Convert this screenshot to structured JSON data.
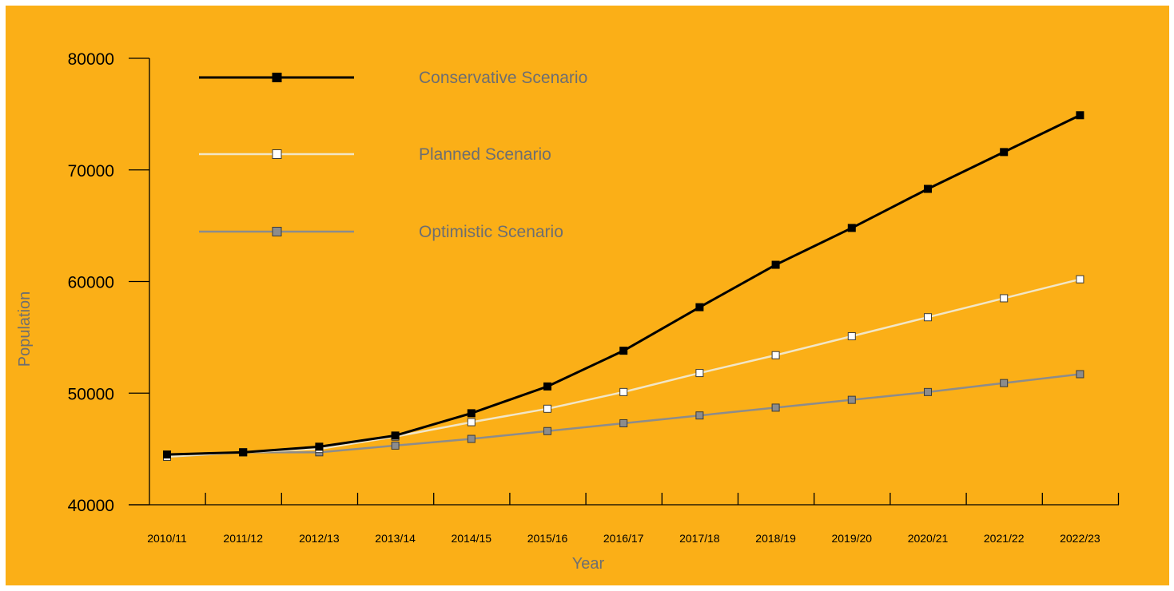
{
  "colors": {
    "background": "#fbaf17",
    "axis": "#000000",
    "label_gray": "#6d6e71"
  },
  "chart_data": {
    "type": "line",
    "title": "",
    "xlabel": "Year",
    "ylabel": "Population",
    "categories": [
      "2010/11",
      "2011/12",
      "2012/13",
      "2013/14",
      "2014/15",
      "2015/16",
      "2016/17",
      "2017/18",
      "2018/19",
      "2019/20",
      "2020/21",
      "2021/22",
      "2022/23"
    ],
    "ylim": [
      40000,
      80000
    ],
    "yticks": [
      40000,
      50000,
      60000,
      70000,
      80000
    ],
    "grid": false,
    "legend_position": "top-left",
    "series": [
      {
        "name": "Conservative Scenario",
        "color": "#000000",
        "marker_fill": "#000000",
        "values": [
          44500,
          44700,
          45200,
          46200,
          48200,
          50600,
          53800,
          57700,
          61500,
          64800,
          68300,
          71600,
          74900
        ]
      },
      {
        "name": "Planned Scenario",
        "color": "#f2e6c6",
        "marker_fill": "#ffffff",
        "values": [
          44300,
          44700,
          45000,
          46100,
          47400,
          48600,
          50100,
          51800,
          53400,
          55100,
          56800,
          58500,
          60200
        ]
      },
      {
        "name": "Optimistic Scenario",
        "color": "#8c8c8c",
        "marker_fill": "#8c8c8c",
        "values": [
          44300,
          44700,
          44700,
          45300,
          45900,
          46600,
          47300,
          48000,
          48700,
          49400,
          50100,
          50900,
          51700
        ]
      }
    ]
  }
}
